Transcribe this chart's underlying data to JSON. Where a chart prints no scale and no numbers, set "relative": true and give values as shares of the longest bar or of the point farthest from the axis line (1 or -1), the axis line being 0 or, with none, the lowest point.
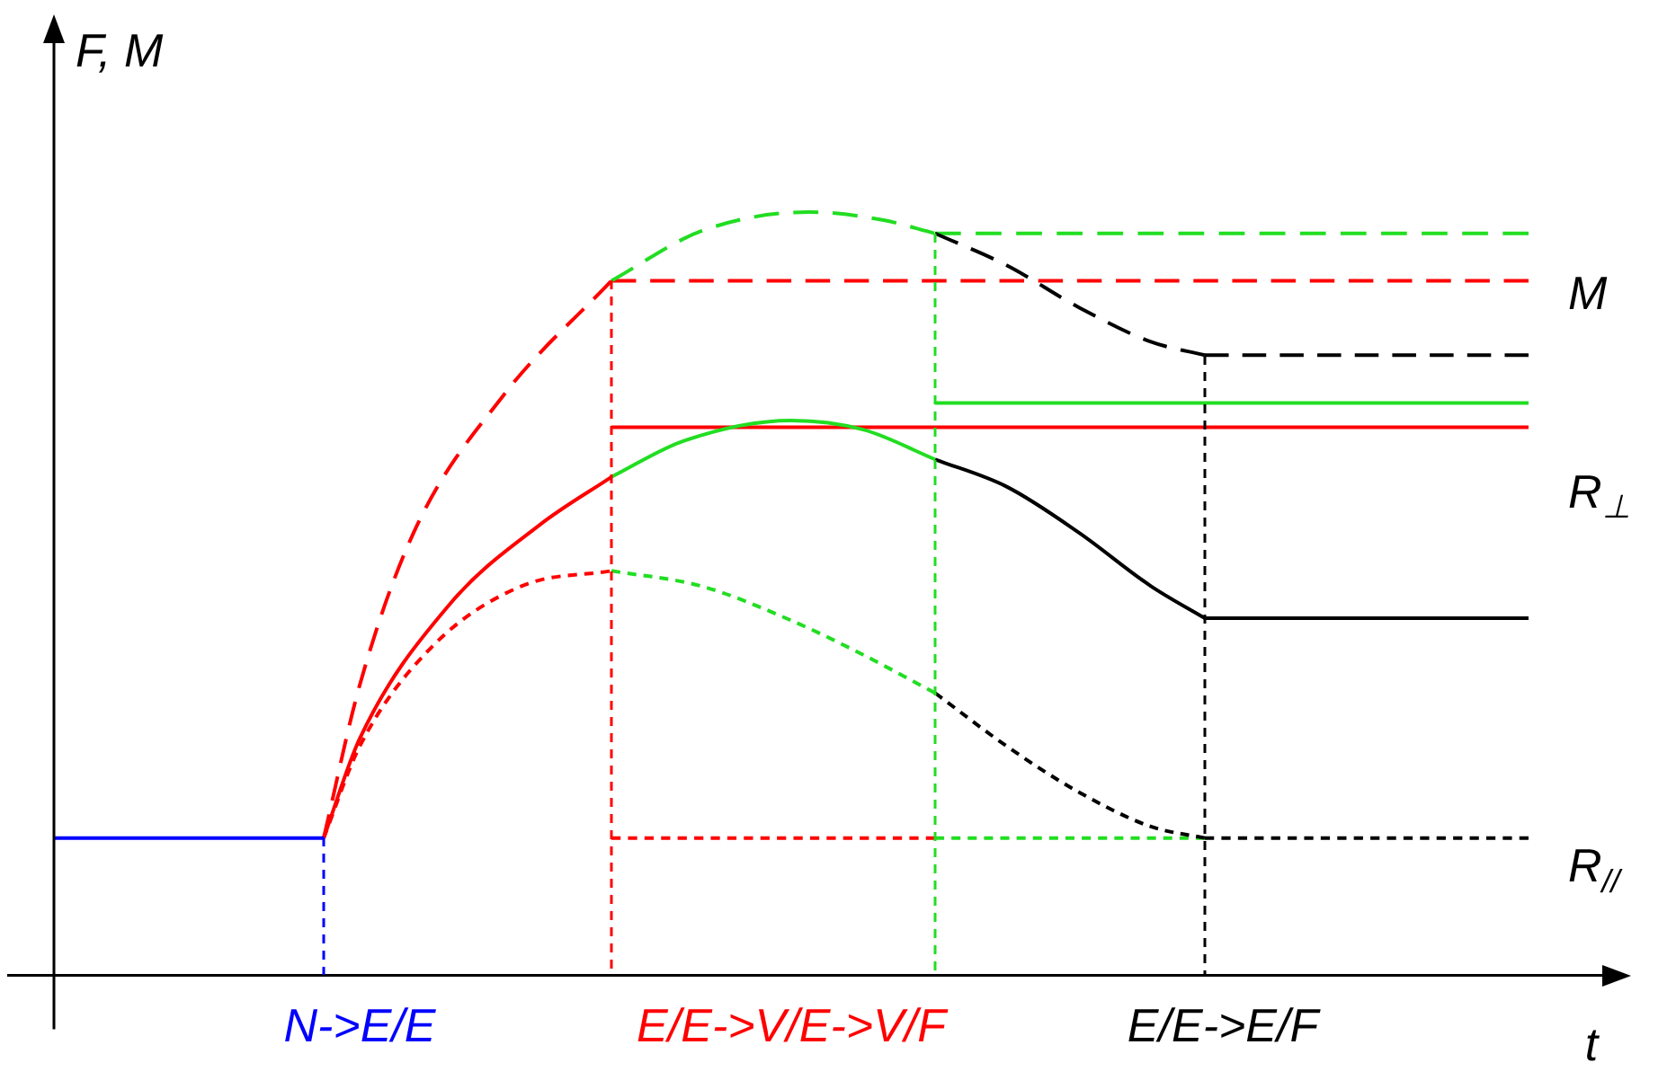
{
  "chart_data": {
    "type": "line",
    "relative": true,
    "ylabel": "F, M",
    "xlabel": "t",
    "tick_labels": "x",
    "categories": [
      null,
      null,
      null,
      null,
      null,
      null,
      null,
      null,
      null,
      null,
      null,
      null,
      null,
      null,
      null,
      null,
      null,
      "N->E/E",
      null,
      null,
      null,
      null,
      null,
      null,
      null,
      null,
      null,
      null,
      null,
      null,
      null,
      null,
      null,
      null,
      null,
      null,
      null,
      null,
      null,
      null,
      null,
      "E/E->V/E->V/F",
      null,
      null,
      null,
      null,
      null,
      null,
      null,
      null,
      null,
      null,
      null,
      null,
      null,
      null,
      null,
      null,
      null,
      null,
      null,
      null,
      null,
      null,
      null,
      "E/E->E/F",
      null,
      null,
      null,
      null,
      null,
      null,
      null,
      null,
      null,
      null,
      null,
      null,
      null,
      null,
      null,
      null,
      null
    ],
    "annotations": [
      "M",
      "R$_{⊥}$",
      "R$_{//}$"
    ],
    "series": [
      {
        "color": "#0000ff",
        "line_style": "solid",
        "values": [
          0.18,
          null,
          null,
          null,
          null,
          null,
          null,
          null,
          null,
          null,
          null,
          null,
          null,
          null,
          null,
          0.18,
          null,
          null,
          null,
          null,
          null,
          null,
          null,
          null,
          null,
          null,
          null,
          null,
          null,
          null,
          null,
          null,
          null,
          null,
          null,
          null,
          null,
          null,
          null,
          null,
          null,
          null,
          null,
          null,
          null,
          null,
          null,
          null,
          null,
          null,
          null,
          null,
          null,
          null,
          null,
          null,
          null,
          null,
          null,
          null,
          null,
          null,
          null,
          null,
          null,
          null,
          null,
          null,
          null,
          null,
          null,
          null,
          null,
          null,
          null,
          null,
          null,
          null,
          null,
          null,
          null,
          null,
          null
        ]
      },
      {
        "color": "#ff0000",
        "line_style": "solid",
        "values": [
          null,
          null,
          null,
          null,
          null,
          null,
          null,
          null,
          null,
          null,
          null,
          null,
          null,
          null,
          null,
          0.18,
          null,
          0.31,
          null,
          null,
          null,
          null,
          0.486,
          null,
          null,
          null,
          null,
          0.59,
          null,
          null,
          null,
          0.653,
          null,
          null,
          null,
          null,
          null,
          null,
          null,
          null,
          null,
          null,
          null,
          null,
          null,
          null,
          null,
          null,
          null,
          null,
          null,
          null,
          null,
          null,
          null,
          null,
          null,
          null,
          null,
          null,
          null,
          null,
          null,
          null,
          null,
          null,
          null,
          null,
          null,
          null,
          null,
          null,
          null,
          null,
          null,
          null,
          null,
          null,
          null,
          null,
          null,
          null,
          null
        ]
      },
      {
        "color": "#22dd22",
        "line_style": "solid",
        "values": [
          null,
          null,
          null,
          null,
          null,
          null,
          null,
          null,
          null,
          null,
          null,
          null,
          null,
          null,
          null,
          null,
          null,
          null,
          null,
          null,
          null,
          null,
          null,
          null,
          null,
          null,
          null,
          null,
          null,
          null,
          null,
          0.653,
          null,
          null,
          null,
          0.7,
          null,
          null,
          null,
          null,
          null,
          0.727,
          null,
          null,
          null,
          0.715,
          null,
          null,
          null,
          0.676,
          null,
          null,
          null,
          null,
          null,
          null,
          null,
          null,
          null,
          null,
          null,
          null,
          null,
          null,
          null,
          null,
          null,
          null,
          null,
          null,
          null,
          null,
          null,
          null,
          null,
          null,
          null,
          null,
          null,
          null,
          null,
          null,
          null
        ]
      },
      {
        "color": "#000000",
        "line_style": "solid",
        "values": [
          null,
          null,
          null,
          null,
          null,
          null,
          null,
          null,
          null,
          null,
          null,
          null,
          null,
          null,
          null,
          null,
          null,
          null,
          null,
          null,
          null,
          null,
          null,
          null,
          null,
          null,
          null,
          null,
          null,
          null,
          null,
          null,
          null,
          null,
          null,
          null,
          null,
          null,
          null,
          null,
          null,
          null,
          null,
          null,
          null,
          null,
          null,
          null,
          null,
          0.676,
          null,
          null,
          null,
          0.64,
          null,
          null,
          null,
          0.58,
          null,
          null,
          null,
          0.51,
          null,
          null,
          0.468,
          null,
          null,
          null,
          null,
          null,
          null,
          null,
          null,
          null,
          null,
          null,
          null,
          null,
          null,
          null,
          null,
          null,
          null
        ]
      },
      {
        "color": "#000000",
        "line_style": "solid",
        "values": [
          null,
          null,
          null,
          null,
          null,
          null,
          null,
          null,
          null,
          null,
          null,
          null,
          null,
          null,
          null,
          null,
          null,
          null,
          null,
          null,
          null,
          null,
          null,
          null,
          null,
          null,
          null,
          null,
          null,
          null,
          null,
          null,
          null,
          null,
          null,
          null,
          null,
          null,
          null,
          null,
          null,
          null,
          null,
          null,
          null,
          null,
          null,
          null,
          null,
          null,
          null,
          null,
          null,
          null,
          null,
          null,
          null,
          null,
          null,
          null,
          null,
          null,
          null,
          null,
          0.468,
          null,
          null,
          null,
          null,
          null,
          null,
          null,
          null,
          null,
          null,
          null,
          null,
          null,
          null,
          null,
          null,
          null,
          0.468
        ]
      },
      {
        "color": "#ff0000",
        "line_style": "solid",
        "values": [
          null,
          null,
          null,
          null,
          null,
          null,
          null,
          null,
          null,
          null,
          null,
          null,
          null,
          null,
          null,
          null,
          null,
          null,
          null,
          null,
          null,
          null,
          null,
          null,
          null,
          null,
          null,
          null,
          null,
          null,
          null,
          0.718,
          null,
          null,
          null,
          null,
          null,
          null,
          null,
          null,
          null,
          null,
          null,
          null,
          null,
          null,
          null,
          null,
          null,
          null,
          null,
          null,
          null,
          null,
          null,
          null,
          null,
          null,
          null,
          null,
          null,
          null,
          null,
          null,
          null,
          null,
          null,
          null,
          null,
          null,
          null,
          null,
          null,
          null,
          null,
          null,
          null,
          null,
          null,
          null,
          null,
          null,
          0.718
        ]
      },
      {
        "color": "#22dd22",
        "line_style": "solid",
        "values": [
          null,
          null,
          null,
          null,
          null,
          null,
          null,
          null,
          null,
          null,
          null,
          null,
          null,
          null,
          null,
          null,
          null,
          null,
          null,
          null,
          null,
          null,
          null,
          null,
          null,
          null,
          null,
          null,
          null,
          null,
          null,
          null,
          null,
          null,
          null,
          null,
          null,
          null,
          null,
          null,
          null,
          null,
          null,
          null,
          null,
          null,
          null,
          null,
          null,
          0.75,
          null,
          null,
          null,
          null,
          null,
          null,
          null,
          null,
          null,
          null,
          null,
          null,
          null,
          null,
          null,
          null,
          null,
          null,
          null,
          null,
          null,
          null,
          null,
          null,
          null,
          null,
          null,
          null,
          null,
          null,
          null,
          null,
          0.75
        ]
      },
      {
        "color": "#ff0000",
        "line_style": "dashed",
        "values": [
          null,
          null,
          null,
          null,
          null,
          null,
          null,
          null,
          null,
          null,
          null,
          null,
          null,
          null,
          null,
          0.18,
          null,
          0.38,
          null,
          null,
          0.58,
          null,
          null,
          null,
          null,
          0.76,
          null,
          null,
          null,
          null,
          null,
          0.91,
          null,
          null,
          null,
          null,
          null,
          null,
          null,
          null,
          null,
          null,
          null,
          null,
          null,
          null,
          null,
          null,
          null,
          null,
          null,
          null,
          null,
          null,
          null,
          null,
          null,
          null,
          null,
          null,
          null,
          null,
          null,
          null,
          null,
          null,
          null,
          null,
          null,
          null,
          null,
          null,
          null,
          null,
          null,
          null,
          null,
          null,
          null,
          null,
          null,
          null,
          null
        ]
      },
      {
        "color": "#22dd22",
        "line_style": "dashed",
        "values": [
          null,
          null,
          null,
          null,
          null,
          null,
          null,
          null,
          null,
          null,
          null,
          null,
          null,
          null,
          null,
          null,
          null,
          null,
          null,
          null,
          null,
          null,
          null,
          null,
          null,
          null,
          null,
          null,
          null,
          null,
          null,
          0.91,
          null,
          null,
          null,
          null,
          0.975,
          null,
          null,
          null,
          null,
          null,
          1,
          null,
          null,
          null,
          0.99,
          null,
          null,
          0.972,
          null,
          null,
          null,
          null,
          null,
          null,
          null,
          null,
          null,
          null,
          null,
          null,
          null,
          null,
          null,
          null,
          null,
          null,
          null,
          null,
          null,
          null,
          null,
          null,
          null,
          null,
          null,
          null,
          null,
          null,
          null,
          null,
          null
        ]
      },
      {
        "color": "#000000",
        "line_style": "dashed",
        "values": [
          null,
          null,
          null,
          null,
          null,
          null,
          null,
          null,
          null,
          null,
          null,
          null,
          null,
          null,
          null,
          null,
          null,
          null,
          null,
          null,
          null,
          null,
          null,
          null,
          null,
          null,
          null,
          null,
          null,
          null,
          null,
          null,
          null,
          null,
          null,
          null,
          null,
          null,
          null,
          null,
          null,
          null,
          null,
          null,
          null,
          null,
          null,
          null,
          null,
          0.972,
          null,
          null,
          null,
          0.93,
          null,
          null,
          null,
          0.875,
          null,
          null,
          null,
          0.83,
          null,
          null,
          0.8125,
          null,
          null,
          null,
          null,
          null,
          null,
          null,
          null,
          null,
          null,
          null,
          null,
          null,
          null,
          null,
          null,
          null,
          null
        ]
      },
      {
        "color": "#000000",
        "line_style": "dashed",
        "values": [
          null,
          null,
          null,
          null,
          null,
          null,
          null,
          null,
          null,
          null,
          null,
          null,
          null,
          null,
          null,
          null,
          null,
          null,
          null,
          null,
          null,
          null,
          null,
          null,
          null,
          null,
          null,
          null,
          null,
          null,
          null,
          null,
          null,
          null,
          null,
          null,
          null,
          null,
          null,
          null,
          null,
          null,
          null,
          null,
          null,
          null,
          null,
          null,
          null,
          null,
          null,
          null,
          null,
          null,
          null,
          null,
          null,
          null,
          null,
          null,
          null,
          null,
          null,
          null,
          0.8125,
          null,
          null,
          null,
          null,
          null,
          null,
          null,
          null,
          null,
          null,
          null,
          null,
          null,
          null,
          null,
          null,
          null,
          0.8125
        ]
      },
      {
        "color": "#ff0000",
        "line_style": "dashed",
        "values": [
          null,
          null,
          null,
          null,
          null,
          null,
          null,
          null,
          null,
          null,
          null,
          null,
          null,
          null,
          null,
          null,
          null,
          null,
          null,
          null,
          null,
          null,
          null,
          null,
          null,
          null,
          null,
          null,
          null,
          null,
          null,
          0.91,
          null,
          null,
          null,
          null,
          null,
          null,
          null,
          null,
          null,
          null,
          null,
          null,
          null,
          null,
          null,
          null,
          null,
          null,
          null,
          null,
          null,
          null,
          null,
          null,
          null,
          null,
          null,
          null,
          null,
          null,
          null,
          null,
          null,
          null,
          null,
          null,
          null,
          null,
          null,
          null,
          null,
          null,
          null,
          null,
          null,
          null,
          null,
          null,
          null,
          null,
          0.91
        ]
      },
      {
        "color": "#22dd22",
        "line_style": "dashed",
        "values": [
          null,
          null,
          null,
          null,
          null,
          null,
          null,
          null,
          null,
          null,
          null,
          null,
          null,
          null,
          null,
          null,
          null,
          null,
          null,
          null,
          null,
          null,
          null,
          null,
          null,
          null,
          null,
          null,
          null,
          null,
          null,
          null,
          null,
          null,
          null,
          null,
          null,
          null,
          null,
          null,
          null,
          null,
          null,
          null,
          null,
          null,
          null,
          null,
          null,
          0.972,
          null,
          null,
          null,
          null,
          null,
          null,
          null,
          null,
          null,
          null,
          null,
          null,
          null,
          null,
          null,
          null,
          null,
          null,
          null,
          null,
          null,
          null,
          null,
          null,
          null,
          null,
          null,
          null,
          null,
          null,
          null,
          null,
          0.972
        ]
      },
      {
        "color": "#ff0000",
        "line_style": "dotted",
        "values": [
          null,
          null,
          null,
          null,
          null,
          null,
          null,
          null,
          null,
          null,
          null,
          null,
          null,
          null,
          null,
          0.18,
          null,
          0.3,
          null,
          null,
          null,
          0.43,
          null,
          null,
          null,
          null,
          0.51,
          null,
          null,
          null,
          null,
          0.53,
          null,
          null,
          null,
          null,
          null,
          null,
          null,
          null,
          null,
          null,
          null,
          null,
          null,
          null,
          null,
          null,
          null,
          null,
          null,
          null,
          null,
          null,
          null,
          null,
          null,
          null,
          null,
          null,
          null,
          null,
          null,
          null,
          null,
          null,
          null,
          null,
          null,
          null,
          null,
          null,
          null,
          null,
          null,
          null,
          null,
          null,
          null,
          null,
          null,
          null,
          null
        ]
      },
      {
        "color": "#22dd22",
        "line_style": "dotted",
        "values": [
          null,
          null,
          null,
          null,
          null,
          null,
          null,
          null,
          null,
          null,
          null,
          null,
          null,
          null,
          null,
          null,
          null,
          null,
          null,
          null,
          null,
          null,
          null,
          null,
          null,
          null,
          null,
          null,
          null,
          null,
          null,
          0.53,
          null,
          null,
          null,
          null,
          0.51,
          null,
          null,
          null,
          null,
          0.465,
          null,
          null,
          null,
          0.42,
          null,
          null,
          null,
          0.37,
          null,
          null,
          null,
          null,
          null,
          null,
          null,
          null,
          null,
          null,
          null,
          null,
          null,
          null,
          null,
          null,
          null,
          null,
          null,
          null,
          null,
          null,
          null,
          null,
          null,
          null,
          null,
          null,
          null,
          null,
          null,
          null,
          null
        ]
      },
      {
        "color": "#000000",
        "line_style": "dotted",
        "values": [
          null,
          null,
          null,
          null,
          null,
          null,
          null,
          null,
          null,
          null,
          null,
          null,
          null,
          null,
          null,
          null,
          null,
          null,
          null,
          null,
          null,
          null,
          null,
          null,
          null,
          null,
          null,
          null,
          null,
          null,
          null,
          null,
          null,
          null,
          null,
          null,
          null,
          null,
          null,
          null,
          null,
          null,
          null,
          null,
          null,
          null,
          null,
          null,
          null,
          0.37,
          null,
          null,
          null,
          0.3,
          null,
          null,
          null,
          0.24,
          null,
          null,
          null,
          0.195,
          null,
          null,
          0.18,
          null,
          null,
          null,
          null,
          null,
          null,
          null,
          null,
          null,
          null,
          null,
          null,
          null,
          null,
          null,
          null,
          null,
          null
        ]
      },
      {
        "color": "#000000",
        "line_style": "dotted",
        "values": [
          null,
          null,
          null,
          null,
          null,
          null,
          null,
          null,
          null,
          null,
          null,
          null,
          null,
          null,
          null,
          null,
          null,
          null,
          null,
          null,
          null,
          null,
          null,
          null,
          null,
          null,
          null,
          null,
          null,
          null,
          null,
          null,
          null,
          null,
          null,
          null,
          null,
          null,
          null,
          null,
          null,
          null,
          null,
          null,
          null,
          null,
          null,
          null,
          null,
          null,
          null,
          null,
          null,
          null,
          null,
          null,
          null,
          null,
          null,
          null,
          null,
          null,
          null,
          null,
          0.18,
          null,
          null,
          null,
          null,
          null,
          null,
          null,
          null,
          null,
          null,
          null,
          null,
          null,
          null,
          null,
          null,
          null,
          0.18
        ]
      },
      {
        "color": "#ff0000",
        "line_style": "dotted",
        "values": [
          null,
          null,
          null,
          null,
          null,
          null,
          null,
          null,
          null,
          null,
          null,
          null,
          null,
          null,
          null,
          null,
          null,
          null,
          null,
          null,
          null,
          null,
          null,
          null,
          null,
          null,
          null,
          null,
          null,
          null,
          null,
          0.18,
          null,
          null,
          null,
          null,
          null,
          null,
          null,
          null,
          null,
          null,
          null,
          null,
          null,
          null,
          null,
          null,
          null,
          0.18,
          null,
          null,
          null,
          null,
          null,
          null,
          null,
          null,
          null,
          null,
          null,
          null,
          null,
          null,
          null,
          null,
          null,
          null,
          null,
          null,
          null,
          null,
          null,
          null,
          null,
          null,
          null,
          null,
          null,
          null,
          null,
          null,
          null
        ]
      },
      {
        "color": "#22dd22",
        "line_style": "dotted",
        "values": [
          null,
          null,
          null,
          null,
          null,
          null,
          null,
          null,
          null,
          null,
          null,
          null,
          null,
          null,
          null,
          null,
          null,
          null,
          null,
          null,
          null,
          null,
          null,
          null,
          null,
          null,
          null,
          null,
          null,
          null,
          null,
          null,
          null,
          null,
          null,
          null,
          null,
          null,
          null,
          null,
          null,
          null,
          null,
          null,
          null,
          null,
          null,
          null,
          null,
          0.18,
          null,
          null,
          null,
          null,
          null,
          null,
          null,
          null,
          null,
          null,
          null,
          null,
          null,
          null,
          0.18,
          null,
          null,
          null,
          null,
          null,
          null,
          null,
          null,
          null,
          null,
          null,
          null,
          null,
          null,
          null,
          null,
          null,
          null
        ]
      }
    ]
  }
}
